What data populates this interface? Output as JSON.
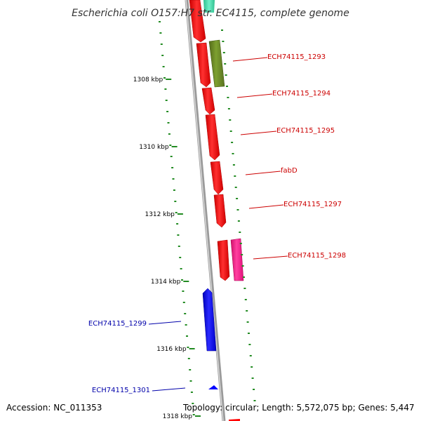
{
  "title": "Escherichia coli O157:H7 str. EC4115, complete genome",
  "footer": {
    "accession": "Accession: NC_011353",
    "topology": "Topology: circular; Length: 5,572,075 bp; Genes: 5,447"
  },
  "ruler": {
    "ticks": [
      "1308 kbp",
      "1310 kbp",
      "1312 kbp",
      "1314 kbp",
      "1316 kbp",
      "1318 kbp"
    ]
  },
  "colors": {
    "forward_gene": "#ff0000",
    "reverse_gene": "#0000ff",
    "olive_gene": "#6b8e23",
    "magenta_gene": "#ff1493",
    "teal_gene": "#40e0b0",
    "backbone": "#8c8c8c",
    "ruler_dots": "#228b22",
    "forward_label": "#cc0000",
    "reverse_label": "#0000aa"
  },
  "genes": [
    {
      "label": "ECH74115_1293",
      "strand": "forward"
    },
    {
      "label": "ECH74115_1294",
      "strand": "forward"
    },
    {
      "label": "ECH74115_1295",
      "strand": "forward"
    },
    {
      "label": "fabD",
      "strand": "forward"
    },
    {
      "label": "ECH74115_1297",
      "strand": "forward"
    },
    {
      "label": "ECH74115_1298",
      "strand": "forward"
    },
    {
      "label": "ECH74115_1299",
      "strand": "reverse"
    },
    {
      "label": "ECH74115_1301",
      "strand": "reverse"
    }
  ]
}
